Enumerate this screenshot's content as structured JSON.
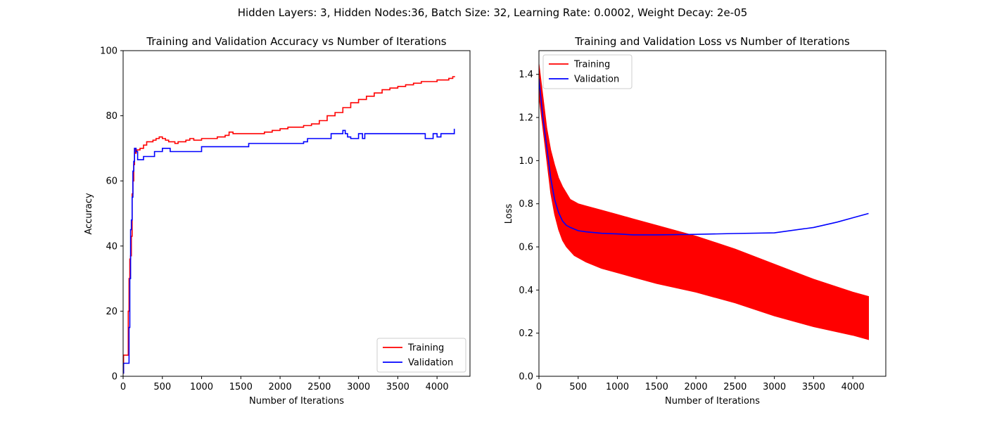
{
  "figure": {
    "suptitle": "Hidden Layers: 3, Hidden Nodes:36, Batch Size: 32, Learning Rate: 0.0002, Weight Decay: 2e-05"
  },
  "chart_data": [
    {
      "type": "line",
      "title": "Training and Validation Accuracy vs Number of Iterations",
      "xlabel": "Number of Iterations",
      "ylabel": "Accuracy",
      "xlim": [
        0,
        4420
      ],
      "ylim": [
        0,
        100
      ],
      "xticks": [
        0,
        500,
        1000,
        1500,
        2000,
        2500,
        3000,
        3500,
        4000
      ],
      "yticks": [
        0,
        20,
        40,
        60,
        80,
        100
      ],
      "grid": false,
      "legend": "lower-right",
      "series": [
        {
          "name": "Training",
          "color": "#ff0000",
          "step": true,
          "x": [
            0,
            5,
            55,
            65,
            75,
            85,
            95,
            105,
            115,
            125,
            135,
            145,
            155,
            165,
            175,
            190,
            215,
            260,
            300,
            340,
            380,
            420,
            460,
            500,
            540,
            580,
            620,
            660,
            700,
            750,
            800,
            850,
            900,
            950,
            1000,
            1100,
            1200,
            1300,
            1350,
            1400,
            1500,
            1600,
            1700,
            1800,
            1900,
            2000,
            2100,
            2200,
            2300,
            2400,
            2500,
            2600,
            2700,
            2800,
            2900,
            3000,
            3100,
            3200,
            3300,
            3400,
            3500,
            3600,
            3700,
            3800,
            3900,
            4000,
            4100,
            4150,
            4200,
            4230
          ],
          "y": [
            1.0,
            6.5,
            6.5,
            20,
            30,
            36,
            37,
            43,
            56,
            60,
            65,
            70,
            68.5,
            69,
            69.5,
            69.5,
            70,
            71,
            72,
            72,
            72.5,
            73,
            73.5,
            73,
            72.5,
            72,
            72,
            71.5,
            72,
            72,
            72.5,
            73,
            72.5,
            72.5,
            73,
            73,
            73.5,
            74,
            75,
            74.5,
            74.5,
            74.5,
            74.5,
            75,
            75.5,
            76,
            76.5,
            76.5,
            77,
            77.5,
            78.5,
            80,
            81,
            82.5,
            84,
            85,
            86,
            87,
            88,
            88.5,
            89,
            89.5,
            90,
            90.5,
            90.5,
            91,
            91,
            91.5,
            92,
            92
          ]
        },
        {
          "name": "Validation",
          "color": "#0000ff",
          "step": true,
          "x": [
            0,
            5,
            65,
            75,
            85,
            95,
            105,
            115,
            125,
            135,
            145,
            155,
            165,
            185,
            260,
            300,
            400,
            500,
            600,
            700,
            800,
            900,
            1000,
            1100,
            1200,
            1400,
            1600,
            1800,
            2000,
            2200,
            2300,
            2350,
            2500,
            2650,
            2750,
            2800,
            2830,
            2860,
            2900,
            2950,
            3000,
            3050,
            3080,
            3100,
            3300,
            3500,
            3700,
            3800,
            3850,
            3950,
            4000,
            4050,
            4100,
            4150,
            4200,
            4220
          ],
          "y": [
            1.0,
            4,
            4,
            15,
            30,
            45,
            48,
            55,
            63,
            66,
            70,
            70,
            69,
            66.5,
            67.5,
            67.5,
            69,
            70,
            69,
            69,
            69,
            69,
            70.5,
            70.5,
            70.5,
            70.5,
            71.5,
            71.5,
            71.5,
            71.5,
            72,
            73,
            73,
            74.5,
            74.5,
            75.5,
            74.5,
            73.5,
            73,
            73,
            74.5,
            73,
            74.5,
            74.5,
            74.5,
            74.5,
            74.5,
            74.5,
            73,
            74.5,
            73.5,
            74.5,
            74.5,
            74.5,
            74.5,
            76
          ]
        }
      ]
    },
    {
      "type": "line",
      "title": "Training and Validation Loss vs Number of Iterations",
      "xlabel": "Number of Iterations",
      "ylabel": "Loss",
      "xlim": [
        0,
        4420
      ],
      "ylim": [
        0,
        1.51
      ],
      "xticks": [
        0,
        500,
        1000,
        1500,
        2000,
        2500,
        3000,
        3500,
        4000
      ],
      "yticks": [
        0.0,
        0.2,
        0.4,
        0.6,
        0.8,
        1.0,
        1.2,
        1.4
      ],
      "grid": false,
      "legend": "upper-left",
      "series": [
        {
          "name": "Training",
          "color": "#ff0000",
          "band": true,
          "x": [
            0,
            50,
            100,
            150,
            200,
            250,
            300,
            350,
            400,
            450,
            500,
            600,
            800,
            1000,
            1200,
            1500,
            2000,
            2500,
            3000,
            3500,
            4000,
            4200
          ],
          "upper": [
            1.45,
            1.3,
            1.15,
            1.05,
            0.98,
            0.92,
            0.88,
            0.85,
            0.82,
            0.81,
            0.8,
            0.79,
            0.77,
            0.75,
            0.73,
            0.7,
            0.65,
            0.59,
            0.52,
            0.45,
            0.39,
            0.37
          ],
          "lower": [
            1.3,
            1.15,
            1.0,
            0.85,
            0.75,
            0.68,
            0.63,
            0.6,
            0.58,
            0.56,
            0.55,
            0.53,
            0.5,
            0.48,
            0.46,
            0.43,
            0.39,
            0.34,
            0.28,
            0.23,
            0.19,
            0.17
          ]
        },
        {
          "name": "Validation",
          "color": "#0000ff",
          "x": [
            0,
            50,
            100,
            150,
            200,
            250,
            300,
            350,
            400,
            500,
            600,
            800,
            1000,
            1200,
            1500,
            2000,
            2500,
            3000,
            3500,
            3800,
            4000,
            4200
          ],
          "y": [
            1.38,
            1.2,
            1.06,
            0.92,
            0.82,
            0.76,
            0.72,
            0.7,
            0.69,
            0.675,
            0.67,
            0.663,
            0.66,
            0.656,
            0.656,
            0.658,
            0.662,
            0.665,
            0.69,
            0.715,
            0.735,
            0.755
          ]
        }
      ]
    }
  ]
}
